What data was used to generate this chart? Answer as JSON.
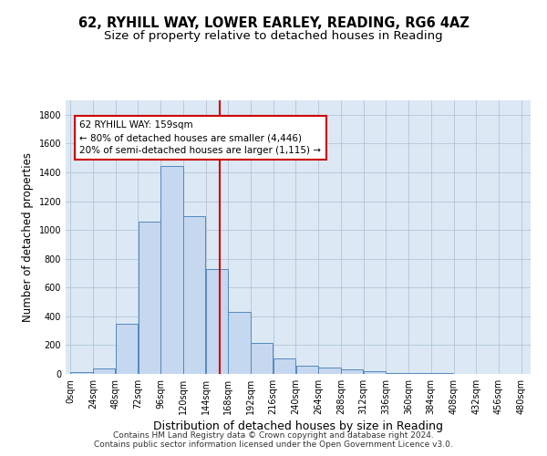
{
  "title_line1": "62, RYHILL WAY, LOWER EARLEY, READING, RG6 4AZ",
  "title_line2": "Size of property relative to detached houses in Reading",
  "xlabel": "Distribution of detached houses by size in Reading",
  "ylabel": "Number of detached properties",
  "bar_edges": [
    0,
    24,
    48,
    72,
    96,
    120,
    144,
    168,
    192,
    216,
    240,
    264,
    288,
    312,
    336,
    360,
    384,
    408,
    432,
    456,
    480
  ],
  "bar_heights": [
    10,
    35,
    350,
    1055,
    1445,
    1095,
    730,
    430,
    215,
    105,
    55,
    45,
    30,
    20,
    5,
    5,
    5,
    0,
    0,
    0
  ],
  "bar_color": "#c5d8f0",
  "bar_edgecolor": "#5588bb",
  "vline_x": 159,
  "vline_color": "#cc0000",
  "annotation_text": "62 RYHILL WAY: 159sqm\n← 80% of detached houses are smaller (4,446)\n20% of semi-detached houses are larger (1,115) →",
  "annotation_box_color": "#ffffff",
  "annotation_box_edgecolor": "#cc0000",
  "ylim": [
    0,
    1900
  ],
  "yticks": [
    0,
    200,
    400,
    600,
    800,
    1000,
    1200,
    1400,
    1600,
    1800
  ],
  "xlim": [
    -5,
    490
  ],
  "background_color": "#ffffff",
  "plot_bg_color": "#dce9f5",
  "grid_color": "#b0c4d8",
  "footer_line1": "Contains HM Land Registry data © Crown copyright and database right 2024.",
  "footer_line2": "Contains public sector information licensed under the Open Government Licence v3.0.",
  "title_fontsize": 10.5,
  "subtitle_fontsize": 9.5,
  "xlabel_fontsize": 9,
  "ylabel_fontsize": 8.5,
  "tick_fontsize": 7,
  "annot_fontsize": 7.5,
  "footer_fontsize": 6.5
}
